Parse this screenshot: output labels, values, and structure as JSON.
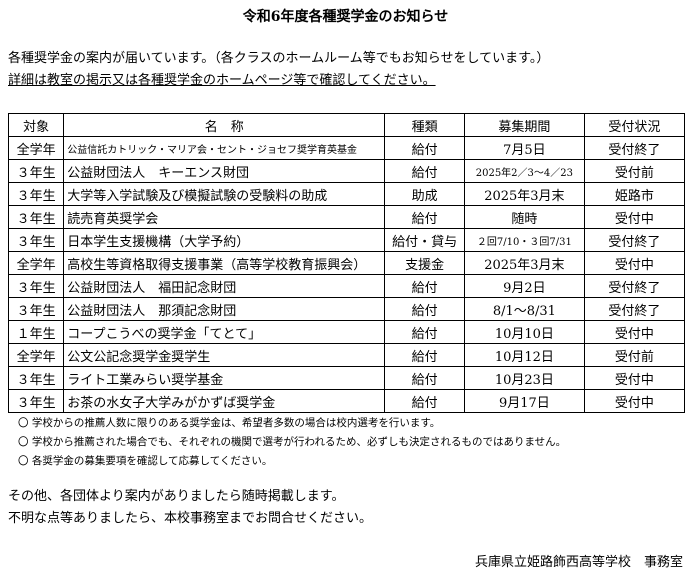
{
  "title": "令和6年度各種奨学金のお知らせ",
  "intro": [
    "各種奨学金の案内が届いています。（各クラスのホームルーム等でもお知らせをしています。）",
    "詳細は教室の掲示又は各種奨学金のホームページ等で確認してください。"
  ],
  "table": {
    "headers": [
      "対象",
      "名　称",
      "種類",
      "募集期間",
      "受付状況"
    ],
    "rows": [
      [
        "全学年",
        "公益信託カトリック・マリア会・セント・ジョセフ奨学育英基金",
        "給付",
        "7月5日",
        "受付終了"
      ],
      [
        "３年生",
        "公益財団法人　キーエンス財団",
        "給付",
        "2025年2／3～4／23",
        "受付前"
      ],
      [
        "３年生",
        "大学等入学試験及び模擬試験の受験料の助成",
        "助成",
        "2025年3月末",
        "姫路市"
      ],
      [
        "３年生",
        "読売育英奨学会",
        "給付",
        "随時",
        "受付中"
      ],
      [
        "３年生",
        "日本学生支援機構（大学予約）",
        "給付・貸与",
        "２回7/10・３回7/31",
        "受付終了"
      ],
      [
        "全学年",
        "高校生等資格取得支援事業（高等学校教育振興会）",
        "支援金",
        "2025年3月末",
        "受付中"
      ],
      [
        "３年生",
        "公益財団法人　福田記念財団",
        "給付",
        "9月2日",
        "受付終了"
      ],
      [
        "３年生",
        "公益財団法人　那須記念財団",
        "給付",
        "8/1～8/31",
        "受付終了"
      ],
      [
        "１年生",
        "コープこうべの奨学金「てとて」",
        "給付",
        "10月10日",
        "受付中"
      ],
      [
        "全学年",
        "公文公記念奨学金奨学生",
        "給付",
        "10月12日",
        "受付前"
      ],
      [
        "３年生",
        "ライト工業みらい奨学基金",
        "給付",
        "10月23日",
        "受付中"
      ],
      [
        "３年生",
        "お茶の水女子大学みがかずば奨学金",
        "給付",
        "9月17日",
        "受付中"
      ]
    ]
  },
  "notes": [
    "〇 学校からの推薦人数に限りのある奨学金は、希望者多数の場合は校内選考を行います。",
    "〇 学校から推薦された場合でも、それぞれの機関で選考が行われるため、必ずしも決定されるものではありません。",
    "〇 各奨学金の募集要項を確認して応募してください。"
  ],
  "closing": [
    "その他、各団体より案内がありましたら随時掲載します。",
    "不明な点等ありましたら、本校事務室までお問合せください。"
  ],
  "signature": "兵庫県立姫路飾西高等学校　事務室"
}
